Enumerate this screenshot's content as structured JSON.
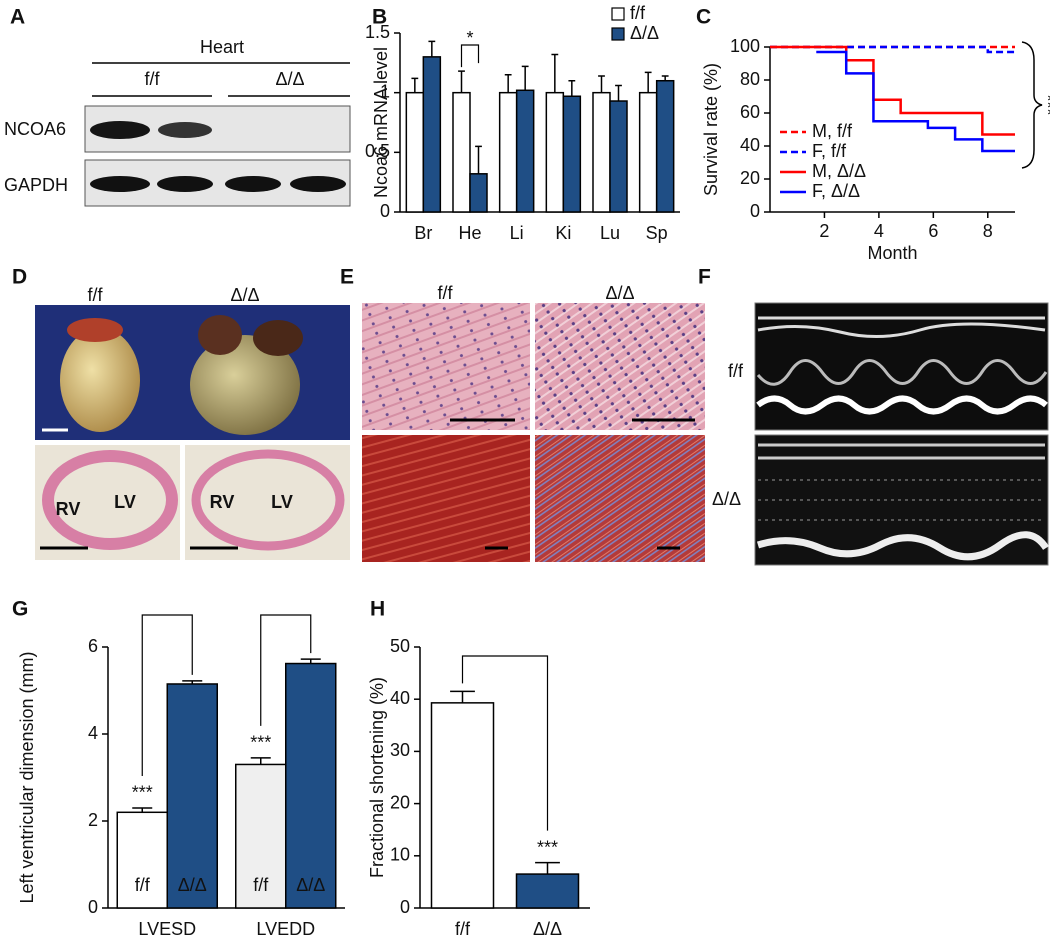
{
  "chart_data": [
    {
      "type": "bar",
      "panel": "B",
      "ylabel": "Ncoa6 mRNA level",
      "categories": [
        "Br",
        "He",
        "Li",
        "Ki",
        "Lu",
        "Sp"
      ],
      "series": [
        {
          "name": "f/f",
          "color": "#ffffff",
          "values": [
            1,
            1,
            1,
            1,
            1,
            1
          ],
          "errors": [
            0.12,
            0.18,
            0.15,
            0.32,
            0.14,
            0.17
          ]
        },
        {
          "name": "Δ/Δ",
          "color": "#1f4e85",
          "values": [
            1.3,
            0.32,
            1.02,
            0.97,
            0.93,
            1.1
          ],
          "errors": [
            0.13,
            0.23,
            0.2,
            0.13,
            0.13,
            0.04
          ]
        }
      ],
      "significance": [
        null,
        "*",
        null,
        null,
        null,
        null
      ],
      "ylim": [
        0,
        1.5
      ],
      "yticks": [
        0,
        0.5,
        1,
        1.5
      ],
      "legend": "top-right"
    },
    {
      "type": "line",
      "panel": "C",
      "ylabel": "Survival rate (%)",
      "xlabel": "Month",
      "series": [
        {
          "name": "M, f/f",
          "color": "#ff0000",
          "style": "dashed",
          "x": [
            0,
            9
          ],
          "values": [
            100,
            100
          ]
        },
        {
          "name": "F, f/f",
          "color": "#0000ff",
          "style": "dashed",
          "x": [
            0,
            8,
            9
          ],
          "values": [
            100,
            97,
            97
          ]
        },
        {
          "name": "M, Δ/Δ",
          "color": "#ff0000",
          "style": "solid",
          "x": [
            0,
            2.8,
            3.8,
            4.8,
            7.8,
            9
          ],
          "values": [
            100,
            92,
            68,
            60,
            47,
            47
          ]
        },
        {
          "name": "F, Δ/Δ",
          "color": "#0000ff",
          "style": "solid",
          "x": [
            1.7,
            2.8,
            3.8,
            5.8,
            6.8,
            7.8,
            9
          ],
          "values": [
            97,
            84,
            55,
            51,
            44,
            37,
            37
          ]
        }
      ],
      "annotations": [
        "***"
      ],
      "xlim": [
        0,
        9
      ],
      "xticks": [
        2,
        4,
        6,
        8
      ],
      "ylim": [
        0,
        100
      ],
      "yticks": [
        0,
        20,
        40,
        60,
        80,
        100
      ],
      "step": true,
      "legend": "lower-left"
    },
    {
      "type": "bar",
      "panel": "G",
      "ylabel": "Left ventricular dimension (mm)",
      "categories": [
        "LVESD",
        "LVEDD"
      ],
      "series": [
        {
          "name": "f/f",
          "color": "#ffffff",
          "colors": [
            "#ffffff",
            "#efefef"
          ],
          "values": [
            2.2,
            3.3
          ],
          "errors": [
            0.1,
            0.15
          ]
        },
        {
          "name": "Δ/Δ",
          "color": "#1f4e85",
          "values": [
            5.15,
            5.62
          ],
          "errors": [
            0.07,
            0.1
          ]
        }
      ],
      "significance": [
        "***",
        "***"
      ],
      "ylim": [
        0,
        6
      ],
      "yticks": [
        0,
        2,
        4,
        6
      ],
      "legend": "in-bars"
    },
    {
      "type": "bar",
      "panel": "H",
      "ylabel": "Fractional shortening (%)",
      "categories": [
        "f/f",
        "Δ/Δ"
      ],
      "values": [
        39.3,
        6.5
      ],
      "errors": [
        2.2,
        2.2
      ],
      "colors": [
        "#ffffff",
        "#1f4e85"
      ],
      "significance": [
        null,
        "***"
      ],
      "ylim": [
        0,
        50
      ],
      "yticks": [
        0,
        10,
        20,
        30,
        40,
        50
      ]
    }
  ],
  "panels": {
    "A": {
      "label": "A",
      "group": "Heart",
      "lanes": [
        "f/f",
        "Δ/Δ"
      ],
      "bands": [
        "NCOA6",
        "GAPDH"
      ]
    },
    "D": {
      "label": "D",
      "columns": [
        "f/f",
        "Δ/Δ"
      ],
      "regions": [
        "RV",
        "LV"
      ]
    },
    "E": {
      "label": "E",
      "columns": [
        "f/f",
        "Δ/Δ"
      ]
    },
    "F": {
      "label": "F",
      "rows": [
        "f/f",
        "Δ/Δ"
      ]
    }
  }
}
